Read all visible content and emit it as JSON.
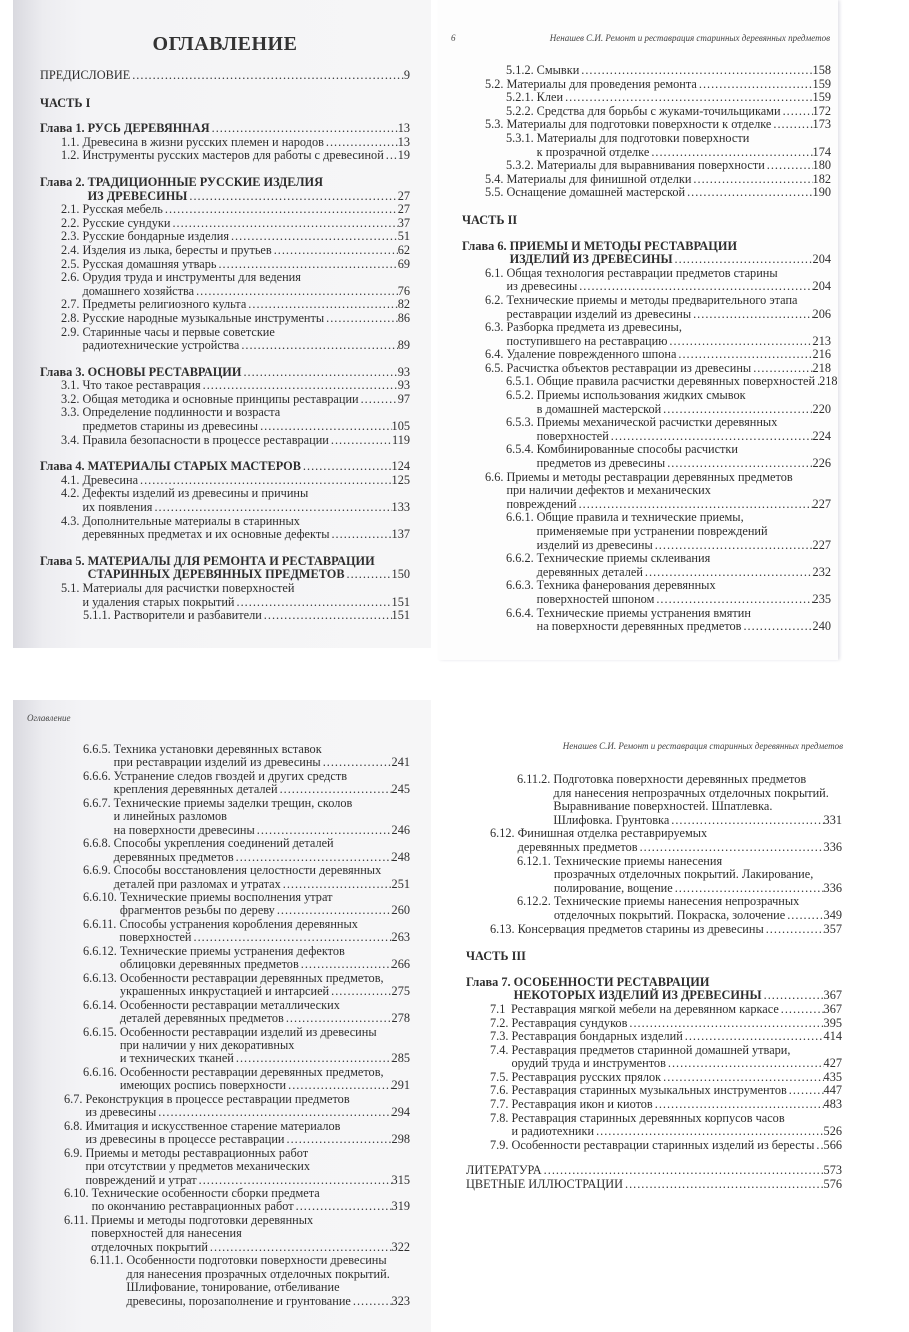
{
  "pages": [
    {
      "title": "ОГЛАВЛЕНИЕ",
      "entries": [
        {
          "type": "matter",
          "text": [
            "ПРЕДИСЛОВИЕ"
          ],
          "page": "9"
        },
        {
          "type": "part",
          "text": "ЧАСТЬ I"
        },
        {
          "type": "chapter",
          "num": "Глава 1.",
          "text": [
            "РУСЬ ДЕРЕВЯННАЯ"
          ],
          "page": "13"
        },
        {
          "level": 1,
          "num": "1.1.",
          "text": [
            "Древесина в жизни русских племен и народов"
          ],
          "page": "13"
        },
        {
          "level": 1,
          "num": "1.2.",
          "text": [
            "Инструменты русских мастеров для работы с древесиной"
          ],
          "page": "19"
        },
        {
          "type": "chapter",
          "num": "Глава 2.",
          "text": [
            "ТРАДИЦИОННЫЕ РУССКИЕ ИЗДЕЛИЯ",
            "ИЗ ДРЕВЕСИНЫ"
          ],
          "page": "27"
        },
        {
          "level": 1,
          "num": "2.1.",
          "text": [
            "Русская мебель"
          ],
          "page": "27"
        },
        {
          "level": 1,
          "num": "2.2.",
          "text": [
            "Русские сундуки"
          ],
          "page": "37"
        },
        {
          "level": 1,
          "num": "2.3.",
          "text": [
            "Русские бондарные изделия"
          ],
          "page": "51"
        },
        {
          "level": 1,
          "num": "2.4.",
          "text": [
            "Изделия из лыка, бересты и прутьев"
          ],
          "page": "62"
        },
        {
          "level": 1,
          "num": "2.5.",
          "text": [
            "Русская домашняя утварь"
          ],
          "page": "69"
        },
        {
          "level": 1,
          "num": "2.6.",
          "text": [
            "Орудия труда и инструменты для ведения",
            "домашнего хозяйства"
          ],
          "page": "76"
        },
        {
          "level": 1,
          "num": "2.7.",
          "text": [
            "Предметы религиозного культа"
          ],
          "page": "82"
        },
        {
          "level": 1,
          "num": "2.8.",
          "text": [
            "Русские народные музыкальные инструменты"
          ],
          "page": "86"
        },
        {
          "level": 1,
          "num": "2.9.",
          "text": [
            "Старинные часы и первые советские",
            "радиотехнические устройства"
          ],
          "page": "89"
        },
        {
          "type": "chapter",
          "num": "Глава 3.",
          "text": [
            "ОСНОВЫ РЕСТАВРАЦИИ"
          ],
          "page": "93"
        },
        {
          "level": 1,
          "num": "3.1.",
          "text": [
            "Что такое реставрация"
          ],
          "page": "93"
        },
        {
          "level": 1,
          "num": "3.2.",
          "text": [
            "Общая методика и основные принципы реставрации"
          ],
          "page": "97"
        },
        {
          "level": 1,
          "num": "3.3.",
          "text": [
            "Определение подлинности и возраста",
            "предметов старины из древесины"
          ],
          "page": "105"
        },
        {
          "level": 1,
          "num": "3.4.",
          "text": [
            "Правила безопасности в процессе реставрации"
          ],
          "page": "119"
        },
        {
          "type": "chapter",
          "num": "Глава 4.",
          "text": [
            "МАТЕРИАЛЫ СТАРЫХ МАСТЕРОВ"
          ],
          "page": "124"
        },
        {
          "level": 1,
          "num": "4.1.",
          "text": [
            "Древесина"
          ],
          "page": "125"
        },
        {
          "level": 1,
          "num": "4.2.",
          "text": [
            "Дефекты изделий из древесины и причины",
            "их появления"
          ],
          "page": "133"
        },
        {
          "level": 1,
          "num": "4.3.",
          "text": [
            "Дополнительные материалы в старинных",
            "деревянных предметах и их основные дефекты"
          ],
          "page": "137"
        },
        {
          "type": "chapter",
          "num": "Глава 5.",
          "text": [
            "МАТЕРИАЛЫ ДЛЯ РЕМОНТА И  РЕСТАВРАЦИИ",
            "СТАРИННЫХ ДЕРЕВЯННЫХ ПРЕДМЕТОВ"
          ],
          "page": "150"
        },
        {
          "level": 1,
          "num": "5.1.",
          "text": [
            "Материалы для расчистки поверхностей",
            "и удаления старых покрытий"
          ],
          "page": "151"
        },
        {
          "level": 2,
          "num": "5.1.1.",
          "text": [
            "Растворители и разбавители"
          ],
          "page": "151"
        }
      ]
    },
    {
      "folio": "6",
      "running_head": "Ненашев С.И. Ремонт и реставрация старинных деревянных предметов",
      "entries": [
        {
          "level": 2,
          "num": "5.1.2.",
          "text": [
            "Смывки"
          ],
          "page": "158"
        },
        {
          "level": 1,
          "num": "5.2.",
          "text": [
            "Материалы для проведения ремонта"
          ],
          "page": "159"
        },
        {
          "level": 2,
          "num": "5.2.1.",
          "text": [
            "Клеи"
          ],
          "page": "159"
        },
        {
          "level": 2,
          "num": "5.2.2.",
          "text": [
            "Средства для борьбы с жуками-точильщиками"
          ],
          "page": "172"
        },
        {
          "level": 1,
          "num": "5.3.",
          "text": [
            "Материалы для подготовки поверхности к отделке"
          ],
          "page": "173"
        },
        {
          "level": 2,
          "num": "5.3.1.",
          "text": [
            "Материалы для подготовки поверхности",
            "к прозрачной отделке"
          ],
          "page": "174"
        },
        {
          "level": 2,
          "num": "5.3.2.",
          "text": [
            "Материалы для выравнивания поверхности"
          ],
          "page": "180"
        },
        {
          "level": 1,
          "num": "5.4.",
          "text": [
            "Материалы для финишной отделки"
          ],
          "page": "182"
        },
        {
          "level": 1,
          "num": "5.5.",
          "text": [
            "Оснащение домашней мастерской"
          ],
          "page": "190"
        },
        {
          "type": "part",
          "text": "ЧАСТЬ II"
        },
        {
          "type": "chapter",
          "num": "Глава 6.",
          "text": [
            "ПРИЕМЫ И  МЕТОДЫ РЕСТАВРАЦИИ",
            "ИЗДЕЛИЙ ИЗ ДРЕВЕСИНЫ"
          ],
          "page": "204"
        },
        {
          "level": 1,
          "num": "6.1.",
          "text": [
            "Общая технология реставрации предметов старины",
            "из древесины"
          ],
          "page": "204"
        },
        {
          "level": 1,
          "num": "6.2.",
          "text": [
            "Технические приемы и методы предварительного этапа",
            "реставрации изделий из древесины"
          ],
          "page": "206"
        },
        {
          "level": 1,
          "num": "6.3.",
          "text": [
            "Разборка предмета из древесины,",
            "поступившего на реставрацию"
          ],
          "page": "213"
        },
        {
          "level": 1,
          "num": "6.4.",
          "text": [
            "Удаление поврежденного шпона"
          ],
          "page": "216"
        },
        {
          "level": 1,
          "num": "6.5.",
          "text": [
            "Расчистка объектов реставрации из древесины"
          ],
          "page": "218"
        },
        {
          "level": 2,
          "num": "6.5.1.",
          "text": [
            "Общие правила расчистки деревянных поверхностей"
          ],
          "page": "218"
        },
        {
          "level": 2,
          "num": "6.5.2.",
          "text": [
            "Приемы использования жидких смывок",
            "в домашней мастерской"
          ],
          "page": "220"
        },
        {
          "level": 2,
          "num": "6.5.3.",
          "text": [
            "Приемы механической расчистки деревянных",
            "поверхностей"
          ],
          "page": "224"
        },
        {
          "level": 2,
          "num": "6.5.4.",
          "text": [
            "Комбинированные способы расчистки",
            "предметов из древесины"
          ],
          "page": "226"
        },
        {
          "level": 1,
          "num": "6.6.",
          "text": [
            "Приемы и методы реставрации деревянных предметов",
            "при наличии дефектов и механических",
            "повреждений"
          ],
          "page": "227"
        },
        {
          "level": 2,
          "num": "6.6.1.",
          "text": [
            "Общие правила и технические приемы,",
            "применяемые при устранении повреждений",
            "изделий из древесины"
          ],
          "page": "227"
        },
        {
          "level": 2,
          "num": "6.6.2.",
          "text": [
            "Технические приемы склеивания",
            "деревянных деталей"
          ],
          "page": "232"
        },
        {
          "level": 2,
          "num": "6.6.3.",
          "text": [
            "Техника фанерования деревянных",
            "поверхностей шпоном"
          ],
          "page": "235"
        },
        {
          "level": 2,
          "num": "6.6.4.",
          "text": [
            "Технические приемы устранения вмятин",
            "на поверхности деревянных предметов"
          ],
          "page": "240"
        }
      ]
    },
    {
      "running_head": "Оглавление",
      "entries": [
        {
          "level": 2,
          "num": "6.6.5.",
          "text": [
            "Техника установки деревянных вставок",
            "при реставрации изделий из древесины"
          ],
          "page": "241"
        },
        {
          "level": 2,
          "num": "6.6.6.",
          "text": [
            "Устранение следов гвоздей и других средств",
            "крепления деревянных деталей"
          ],
          "page": "245"
        },
        {
          "level": 2,
          "num": "6.6.7.",
          "text": [
            "Технические приемы заделки трещин, сколов",
            "и линейных разломов",
            "на поверхности древесины"
          ],
          "page": "246"
        },
        {
          "level": 2,
          "num": "6.6.8.",
          "text": [
            "Способы укрепления соединений деталей",
            "деревянных предметов"
          ],
          "page": "248"
        },
        {
          "level": 2,
          "num": "6.6.9.",
          "text": [
            "Способы восстановления целостности деревянных",
            "деталей при разломах и утратах"
          ],
          "page": "251"
        },
        {
          "level": 2,
          "num": "6.6.10.",
          "text": [
            "Технические приемы восполнения утрат",
            "фрагментов резьбы по дереву"
          ],
          "page": "260"
        },
        {
          "level": 2,
          "num": "6.6.11.",
          "text": [
            "Способы устранения коробления деревянных",
            "поверхностей"
          ],
          "page": "263"
        },
        {
          "level": 2,
          "num": "6.6.12.",
          "text": [
            "Технические приемы устранения дефектов",
            "облицовки деревянных предметов"
          ],
          "page": "266"
        },
        {
          "level": 2,
          "num": "6.6.13.",
          "text": [
            "Особенности реставрации деревянных предметов,",
            "украшенных инкрустацией и интарсией"
          ],
          "page": "275"
        },
        {
          "level": 2,
          "num": "6.6.14.",
          "text": [
            "Особенности реставрации металлических",
            "деталей деревянных предметов"
          ],
          "page": "278"
        },
        {
          "level": 2,
          "num": "6.6.15.",
          "text": [
            "Особенности реставрации изделий из древесины",
            "при наличии у них декоративных",
            "и технических тканей"
          ],
          "page": "285"
        },
        {
          "level": 2,
          "num": "6.6.16.",
          "text": [
            "Особенности реставрации деревянных предметов,",
            "имеющих роспись поверхности"
          ],
          "page": "291"
        },
        {
          "level": 1,
          "num": "6.7.",
          "text": [
            "Реконструкция в процессе реставрации предметов",
            "из древесины"
          ],
          "page": "294"
        },
        {
          "level": 1,
          "num": "6.8.",
          "text": [
            "Имитация и искусственное старение материалов",
            "из древесины в процессе реставрации"
          ],
          "page": "298"
        },
        {
          "level": 1,
          "num": "6.9.",
          "text": [
            "Приемы и методы реставрационных работ",
            "при отсутствии у предметов механических",
            "повреждений и утрат"
          ],
          "page": "315"
        },
        {
          "level": 1,
          "num": "6.10.",
          "text": [
            "Технические особенности сборки предмета",
            "по окончанию реставрационных работ"
          ],
          "page": "319"
        },
        {
          "level": 1,
          "num": "6.11.",
          "text": [
            "Приемы и методы подготовки деревянных",
            "поверхностей для нанесения",
            "отделочных покрытий"
          ],
          "page": "322"
        },
        {
          "level": 3,
          "num": "6.11.1.",
          "text": [
            "Особенности подготовки поверхности древесины",
            "для нанесения прозрачных отделочных покрытий.",
            "Шлифование, тонирование, отбеливание",
            "древесины, порозаполнение и грунтование"
          ],
          "page": "323"
        }
      ]
    },
    {
      "running_head": "Ненашев С.И. Ремонт и реставрация старинных деревянных предметов",
      "entries": [
        {
          "level": 3,
          "num": "6.11.2.",
          "text": [
            "Подготовка поверхности деревянных предметов",
            "для нанесения непрозрачных отделочных покрытий.",
            "Выравнивание поверхностей. Шпатлевка.",
            "Шлифовка. Грунтовка"
          ],
          "page": "331"
        },
        {
          "level": 1,
          "num": "6.12.",
          "text": [
            "Финишная отделка реставрируемых",
            "деревянных предметов"
          ],
          "page": "336"
        },
        {
          "level": 3,
          "num": "6.12.1.",
          "text": [
            "Технические приемы нанесения",
            "прозрачных отделочных покрытий. Лакирование,",
            "полирование, вощение"
          ],
          "page": "336"
        },
        {
          "level": 3,
          "num": "6.12.2.",
          "text": [
            "Технические приемы нанесения непрозрачных",
            "отделочных покрытий. Покраска, золочение"
          ],
          "page": "349"
        },
        {
          "level": 1,
          "num": "6.13.",
          "text": [
            "Консервация предметов старины из древесины"
          ],
          "page": "357"
        },
        {
          "type": "part",
          "text": "ЧАСТЬ III"
        },
        {
          "type": "chapter",
          "num": "Глава 7.",
          "text": [
            "ОСОБЕННОСТИ РЕСТАВРАЦИИ",
            "НЕКОТОРЫХ ИЗДЕЛИЙ ИЗ ДРЕВЕСИНЫ"
          ],
          "page": "367"
        },
        {
          "level": 1,
          "num": "7.1",
          "text": [
            "Реставрация мягкой мебели на деревянном каркасе"
          ],
          "page": "367"
        },
        {
          "level": 1,
          "num": "7.2.",
          "text": [
            "Реставрация сундуков"
          ],
          "page": "395"
        },
        {
          "level": 1,
          "num": "7.3.",
          "text": [
            "Реставрация бондарных изделий"
          ],
          "page": "414"
        },
        {
          "level": 1,
          "num": "7.4.",
          "text": [
            "Реставрация предметов старинной домашней утвари,",
            "орудий труда и инструментов"
          ],
          "page": "427"
        },
        {
          "level": 1,
          "num": "7.5.",
          "text": [
            "Реставрация русских прялок"
          ],
          "page": "435"
        },
        {
          "level": 1,
          "num": "7.6.",
          "text": [
            "Реставрация старинных музыкальных инструментов"
          ],
          "page": "447"
        },
        {
          "level": 1,
          "num": "7.7.",
          "text": [
            "Реставрация икон и киотов"
          ],
          "page": "483"
        },
        {
          "level": 1,
          "num": "7.8.",
          "text": [
            "Реставрация старинных деревянных корпусов часов",
            "и радиотехники"
          ],
          "page": "526"
        },
        {
          "level": 1,
          "num": "7.9.",
          "text": [
            "Особенности реставрации старинных изделий из бересты"
          ],
          "page": "566"
        },
        {
          "type": "matter",
          "text": [
            "ЛИТЕРАТУРА"
          ],
          "page": "573"
        },
        {
          "type": "matter",
          "text": [
            "ЦВЕТНЫЕ ИЛЛЮСТРАЦИИ"
          ],
          "page": "576"
        }
      ]
    }
  ]
}
